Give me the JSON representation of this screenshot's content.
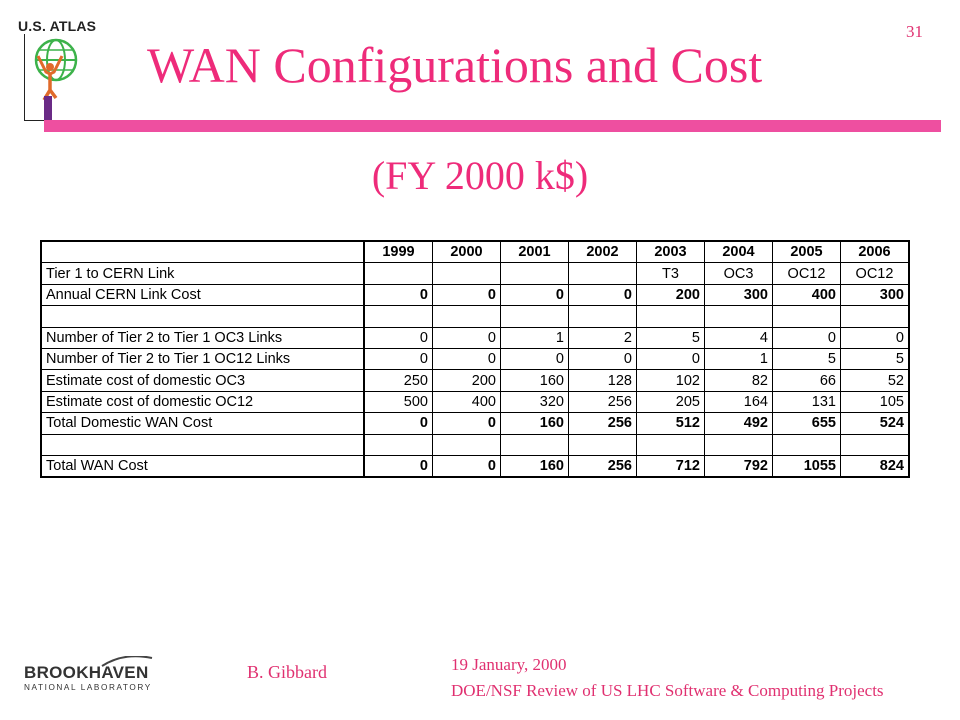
{
  "header": {
    "logo_text": "U.S. ATLAS",
    "title": "WAN Configurations and Cost",
    "page_number": "31",
    "subtitle": "(FY 2000 k$)"
  },
  "table": {
    "years": [
      "1999",
      "2000",
      "2001",
      "2002",
      "2003",
      "2004",
      "2005",
      "2006"
    ],
    "rows": [
      {
        "label": "Tier 1 to CERN Link",
        "values": [
          "",
          "",
          "",
          "",
          "T3",
          "OC3",
          "OC12",
          "OC12"
        ]
      },
      {
        "label": "Annual CERN Link Cost",
        "values": [
          "0",
          "0",
          "0",
          "0",
          "200",
          "300",
          "400",
          "300"
        ]
      },
      {
        "label": "",
        "values": [
          "",
          "",
          "",
          "",
          "",
          "",
          "",
          ""
        ]
      },
      {
        "label": "Number of Tier 2 to Tier 1 OC3 Links",
        "values": [
          "0",
          "0",
          "1",
          "2",
          "5",
          "4",
          "0",
          "0"
        ]
      },
      {
        "label": "Number of Tier 2 to Tier 1 OC12 Links",
        "values": [
          "0",
          "0",
          "0",
          "0",
          "0",
          "1",
          "5",
          "5"
        ]
      },
      {
        "label": "Estimate cost of domestic OC3",
        "values": [
          "250",
          "200",
          "160",
          "128",
          "102",
          "82",
          "66",
          "52"
        ]
      },
      {
        "label": "Estimate cost of domestic OC12",
        "values": [
          "500",
          "400",
          "320",
          "256",
          "205",
          "164",
          "131",
          "105"
        ]
      },
      {
        "label": "Total Domestic WAN Cost",
        "values": [
          "0",
          "0",
          "160",
          "256",
          "512",
          "492",
          "655",
          "524"
        ]
      },
      {
        "label": "",
        "values": [
          "",
          "",
          "",
          "",
          "",
          "",
          "",
          ""
        ]
      },
      {
        "label": "Total WAN Cost",
        "values": [
          "0",
          "0",
          "160",
          "256",
          "712",
          "792",
          "1055",
          "824"
        ]
      }
    ]
  },
  "footer": {
    "logo_main": "BROOKHAVEN",
    "logo_sub": "NATIONAL LABORATORY",
    "author": "B. Gibbard",
    "date": "19 January, 2000",
    "event": "DOE/NSF Review of US LHC Software & Computing Projects"
  },
  "colors": {
    "title": "#ee2b7a",
    "bar": "#ee4fa0",
    "footer_text": "#e03070"
  }
}
